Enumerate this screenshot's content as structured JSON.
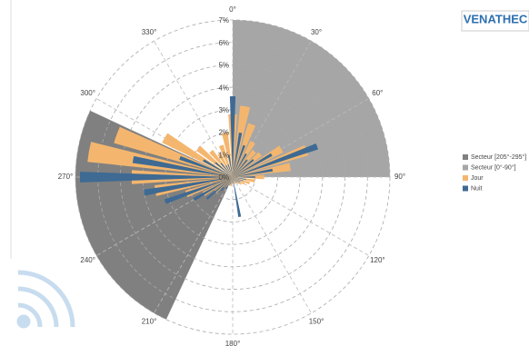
{
  "chart_data": {
    "type": "polar-bar",
    "logo": "VENATHEC",
    "rlim": [
      0,
      7
    ],
    "rticks": [
      {
        "value": 0,
        "label": "0%"
      },
      {
        "value": 1,
        "label": "1%"
      },
      {
        "value": 2,
        "label": "2%"
      },
      {
        "value": 3,
        "label": "3%"
      },
      {
        "value": 4,
        "label": "4%"
      },
      {
        "value": 5,
        "label": "5%"
      },
      {
        "value": 6,
        "label": "6%"
      },
      {
        "value": 7,
        "label": "7%"
      }
    ],
    "angle_ticks": [
      {
        "value": 0,
        "label": "0°"
      },
      {
        "value": 30,
        "label": "30°"
      },
      {
        "value": 60,
        "label": "60°"
      },
      {
        "value": 90,
        "label": "90°"
      },
      {
        "value": 120,
        "label": "120°"
      },
      {
        "value": 150,
        "label": "150°"
      },
      {
        "value": 180,
        "label": "180°"
      },
      {
        "value": 210,
        "label": "210°"
      },
      {
        "value": 240,
        "label": "240°"
      },
      {
        "value": 270,
        "label": "270°"
      },
      {
        "value": 300,
        "label": "300°"
      },
      {
        "value": 330,
        "label": "330°"
      }
    ],
    "sectors": [
      {
        "name": "Secteur [205°-295°]",
        "color": "#808080",
        "start": 205,
        "end": 295,
        "value": 7
      },
      {
        "name": "Secteur [0°-90°]",
        "color": "#a6a6a6",
        "start": 0,
        "end": 90,
        "value": 7
      }
    ],
    "x": [
      0,
      10,
      20,
      30,
      40,
      50,
      60,
      70,
      80,
      90,
      100,
      110,
      120,
      130,
      140,
      150,
      160,
      170,
      180,
      190,
      200,
      210,
      220,
      230,
      240,
      250,
      260,
      270,
      280,
      290,
      300,
      310,
      320,
      330,
      340,
      350
    ],
    "series": [
      {
        "name": "Jour",
        "color": "#f4b66e",
        "values": [
          2.8,
          3.2,
          2.5,
          1.8,
          1.5,
          1.6,
          2.5,
          3.5,
          2.6,
          1.4,
          1.0,
          0.8,
          0.6,
          0.5,
          0.4,
          0.3,
          0.3,
          0.3,
          0.3,
          0.4,
          0.4,
          0.5,
          0.6,
          1.0,
          1.5,
          2.2,
          3.5,
          4.5,
          6.5,
          5.5,
          3.5,
          2.0,
          1.5,
          1.2,
          1.5,
          2.0
        ]
      },
      {
        "name": "Nuit",
        "color": "#3e6a93",
        "values": [
          3.6,
          2.0,
          1.5,
          1.2,
          1.0,
          1.2,
          2.0,
          4.0,
          1.8,
          1.0,
          0.6,
          0.5,
          0.4,
          0.4,
          0.3,
          0.3,
          0.2,
          1.8,
          0.3,
          0.3,
          0.4,
          0.6,
          0.8,
          1.5,
          2.0,
          3.2,
          4.0,
          6.8,
          4.5,
          2.5,
          1.5,
          1.0,
          0.8,
          0.6,
          0.6,
          1.0
        ]
      }
    ]
  }
}
